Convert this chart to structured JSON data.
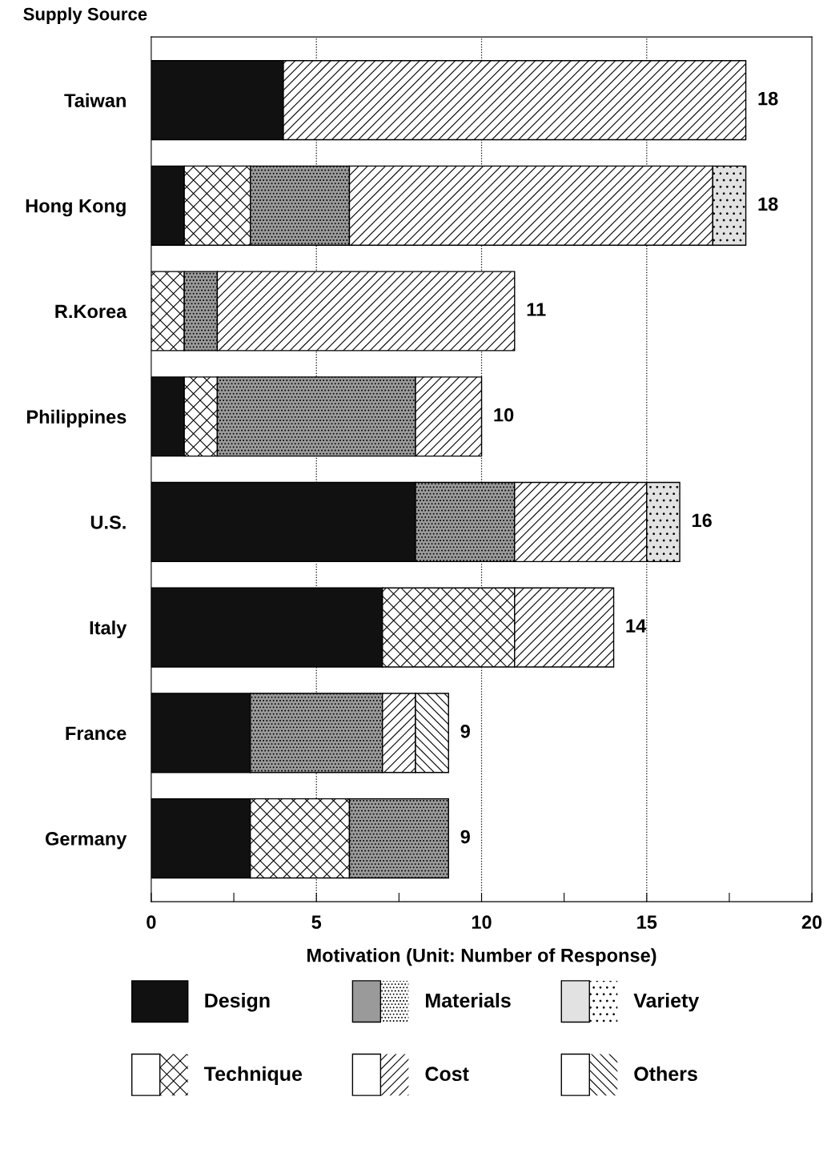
{
  "chart_data": {
    "type": "bar",
    "orientation": "horizontal",
    "stacked": true,
    "categories": [
      "Taiwan",
      "Hong Kong",
      "R.Korea",
      "Philippines",
      "U.S.",
      "Italy",
      "France",
      "Germany"
    ],
    "ylabel": "Supply Source",
    "xlabel": "Motivation (Unit: Number of Response)",
    "series": [
      {
        "name": "Design",
        "color": "#111111",
        "values": [
          4,
          1,
          null,
          1,
          8,
          7,
          3,
          3
        ]
      },
      {
        "name": "Technique",
        "color": "#ffffff",
        "values": [
          null,
          2,
          1,
          1,
          null,
          4,
          null,
          3
        ]
      },
      {
        "name": "Materials",
        "color": "#9a9a9a",
        "values": [
          null,
          3,
          1,
          6,
          3,
          null,
          4,
          3
        ]
      },
      {
        "name": "Cost",
        "color": "#ffffff",
        "values": [
          14,
          11,
          9,
          2,
          4,
          3,
          1,
          null
        ]
      },
      {
        "name": "Variety",
        "color": "#e2e2e2",
        "values": [
          null,
          1,
          null,
          null,
          1,
          null,
          null,
          null
        ]
      },
      {
        "name": "Others",
        "color": "#ffffff",
        "values": [
          null,
          null,
          null,
          null,
          null,
          null,
          1,
          null
        ]
      }
    ],
    "totals": [
      "18",
      "18",
      "11",
      "10",
      "16",
      "14",
      "9",
      "9"
    ],
    "xlim": [
      0,
      20
    ],
    "xticks": [
      0,
      {
        "value": 2.5,
        "label": null
      },
      5,
      {
        "value": 7.5,
        "label": null
      },
      10,
      {
        "value": 12.5,
        "label": null
      },
      15,
      {
        "value": 17.5,
        "label": null
      },
      20
    ],
    "grid": "x",
    "legend": "bottom"
  }
}
